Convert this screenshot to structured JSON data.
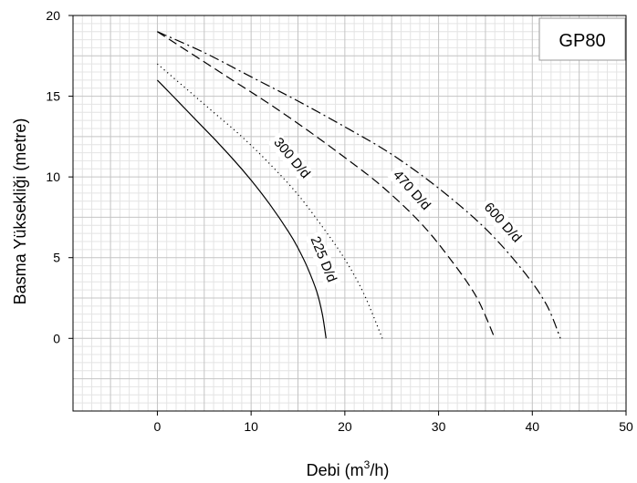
{
  "chart_data": {
    "type": "line",
    "title": "GP80",
    "xlabel": "Debi (m³/h)",
    "xlabel_main": "Debi (m",
    "xlabel_sup": "3",
    "xlabel_tail": "/h)",
    "ylabel": "Basma Yüksekliği (metre)",
    "xlim": [
      -9,
      50
    ],
    "ylim": [
      -4.5,
      20
    ],
    "xticks": [
      0,
      10,
      20,
      30,
      40,
      50
    ],
    "yticks": [
      0,
      5,
      10,
      15,
      20
    ],
    "grid": true,
    "series": [
      {
        "name": "225 D/d",
        "style": "solid",
        "label_at": [
          17.3,
          4.8
        ],
        "label_angle": 68,
        "points": [
          [
            0,
            16
          ],
          [
            2,
            14.8
          ],
          [
            4,
            13.6
          ],
          [
            6,
            12.4
          ],
          [
            8,
            11.15
          ],
          [
            10,
            9.8
          ],
          [
            12,
            8.3
          ],
          [
            14,
            6.6
          ],
          [
            15,
            5.6
          ],
          [
            16,
            4.4
          ],
          [
            17,
            2.9
          ],
          [
            17.6,
            1.5
          ],
          [
            18,
            0
          ]
        ]
      },
      {
        "name": "300 D/d",
        "style": "dotted",
        "label_at": [
          14,
          11
        ],
        "label_angle": 50,
        "points": [
          [
            0,
            17
          ],
          [
            3,
            15.5
          ],
          [
            6,
            14
          ],
          [
            9,
            12.5
          ],
          [
            12,
            10.8
          ],
          [
            15,
            8.9
          ],
          [
            18,
            6.6
          ],
          [
            20,
            4.9
          ],
          [
            22,
            2.8
          ],
          [
            24,
            0
          ]
        ]
      },
      {
        "name": "470 D/d",
        "style": "dashed",
        "label_at": [
          26.8,
          9
        ],
        "label_angle": 48,
        "points": [
          [
            0,
            19
          ],
          [
            4,
            17.5
          ],
          [
            8,
            16
          ],
          [
            12,
            14.5
          ],
          [
            16,
            12.9
          ],
          [
            20,
            11.2
          ],
          [
            24,
            9.4
          ],
          [
            28,
            7.2
          ],
          [
            31,
            5.1
          ],
          [
            34,
            2.6
          ],
          [
            36,
            0
          ]
        ]
      },
      {
        "name": "600 D/d",
        "style": "dashdot",
        "label_at": [
          36.5,
          7
        ],
        "label_angle": 48,
        "points": [
          [
            0,
            19
          ],
          [
            5,
            17.7
          ],
          [
            10,
            16.2
          ],
          [
            15,
            14.7
          ],
          [
            20,
            13.1
          ],
          [
            25,
            11.4
          ],
          [
            30,
            9.3
          ],
          [
            35,
            6.8
          ],
          [
            39,
            4.2
          ],
          [
            41.5,
            2.1
          ],
          [
            43,
            0
          ]
        ]
      }
    ]
  }
}
